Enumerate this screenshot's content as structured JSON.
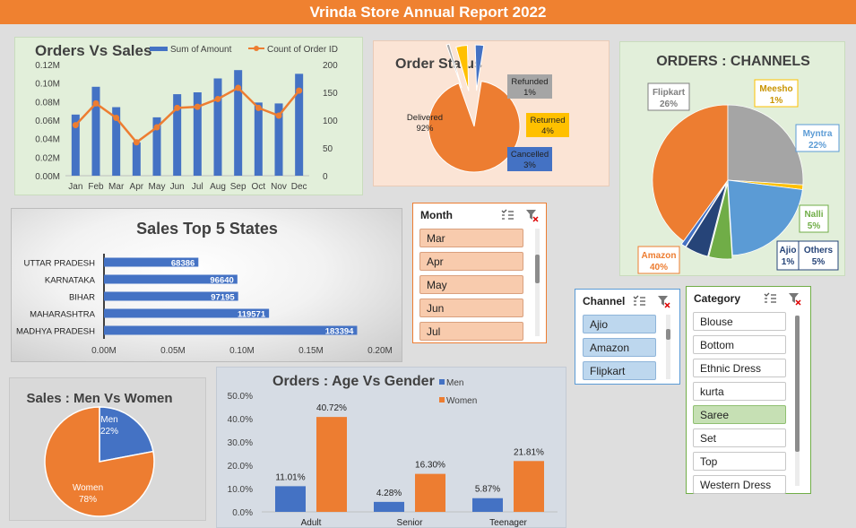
{
  "report_title": "Vrinda Store Annual Report 2022",
  "colors": {
    "blue": "#4472c4",
    "orange": "#ed7d31",
    "gray": "#a5a5a5",
    "yellow": "#ffc000",
    "green": "#70ad47",
    "lightblue": "#5b9bd5",
    "navy": "#264478"
  },
  "chart_data": [
    {
      "id": "orders_vs_sales",
      "type": "bar",
      "title": "Orders Vs Sales",
      "categories": [
        "Jan",
        "Feb",
        "Mar",
        "Apr",
        "May",
        "Jun",
        "Jul",
        "Aug",
        "Sep",
        "Oct",
        "Nov",
        "Dec"
      ],
      "series": [
        {
          "name": "Sum of Amount",
          "type": "bar",
          "axis": "left",
          "values": [
            0.066,
            0.096,
            0.074,
            0.036,
            0.063,
            0.088,
            0.09,
            0.105,
            0.114,
            0.079,
            0.078,
            0.11
          ]
        },
        {
          "name": "Count of Order ID",
          "type": "line",
          "axis": "right",
          "values": [
            91,
            130,
            104,
            60,
            87,
            122,
            124,
            138,
            158,
            122,
            108,
            153
          ]
        }
      ],
      "y_left_ticks": [
        "0.00M",
        "0.02M",
        "0.04M",
        "0.06M",
        "0.08M",
        "0.10M",
        "0.12M"
      ],
      "ylim_left": [
        0,
        0.12
      ],
      "y_right_ticks": [
        "0",
        "50",
        "100",
        "150",
        "200"
      ],
      "ylim_right": [
        0,
        200
      ],
      "legend": "top"
    },
    {
      "id": "order_status",
      "type": "pie",
      "title": "Order Status",
      "slices": [
        {
          "label": "Delivered",
          "pct": "92%",
          "value": 92
        },
        {
          "label": "Refunded",
          "pct": "1%",
          "value": 1
        },
        {
          "label": "Returned",
          "pct": "4%",
          "value": 4
        },
        {
          "label": "Cancelled",
          "pct": "3%",
          "value": 3
        }
      ]
    },
    {
      "id": "orders_channels",
      "type": "pie",
      "title": "ORDERS : CHANNELS",
      "slices": [
        {
          "label": "Amazon",
          "pct": "40%",
          "value": 40
        },
        {
          "label": "Flipkart",
          "pct": "26%",
          "value": 26
        },
        {
          "label": "Meesho",
          "pct": "1%",
          "value": 1
        },
        {
          "label": "Myntra",
          "pct": "22%",
          "value": 22
        },
        {
          "label": "Nalli",
          "pct": "5%",
          "value": 5
        },
        {
          "label": "Others",
          "pct": "5%",
          "value": 5
        },
        {
          "label": "Ajio",
          "pct": "1%",
          "value": 1
        }
      ]
    },
    {
      "id": "top5_states",
      "type": "bar",
      "orientation": "horizontal",
      "title": "Sales Top 5 States",
      "categories": [
        "UTTAR PRADESH",
        "KARNATAKA",
        "BIHAR",
        "MAHARASHTRA",
        "MADHYA PRADESH"
      ],
      "values": [
        68386,
        96640,
        97195,
        119571,
        183394
      ],
      "value_labels": [
        "68386",
        "96640",
        "97195",
        "119571",
        "183394"
      ],
      "x_ticks": [
        "0.00M",
        "0.05M",
        "0.10M",
        "0.15M",
        "0.20M"
      ],
      "xlim": [
        0,
        200000
      ]
    },
    {
      "id": "men_vs_women",
      "type": "pie",
      "title": "Sales : Men Vs Women",
      "slices": [
        {
          "label": "Men",
          "pct": "22%",
          "value": 22
        },
        {
          "label": "Women",
          "pct": "78%",
          "value": 78
        }
      ]
    },
    {
      "id": "age_vs_gender",
      "type": "bar",
      "title": "Orders : Age Vs Gender",
      "categories": [
        "Adult",
        "Senior",
        "Teenager"
      ],
      "series": [
        {
          "name": "Men",
          "values": [
            11.01,
            4.28,
            5.87
          ],
          "labels": [
            "11.01%",
            "4.28%",
            "5.87%"
          ]
        },
        {
          "name": "Women",
          "values": [
            40.72,
            16.3,
            21.81
          ],
          "labels": [
            "40.72%",
            "16.30%",
            "21.81%"
          ]
        }
      ],
      "y_ticks": [
        "0.0%",
        "10.0%",
        "20.0%",
        "30.0%",
        "40.0%",
        "50.0%"
      ],
      "ylim": [
        0,
        50
      ],
      "legend": "top-right"
    }
  ],
  "slicers": {
    "month": {
      "title": "Month",
      "items": [
        "Mar",
        "Apr",
        "May",
        "Jun",
        "Jul"
      ]
    },
    "channel": {
      "title": "Channel",
      "items": [
        "Ajio",
        "Amazon",
        "Flipkart"
      ]
    },
    "category": {
      "title": "Category",
      "items": [
        "Blouse",
        "Bottom",
        "Ethnic Dress",
        "kurta",
        "Saree",
        "Set",
        "Top",
        "Western Dress"
      ],
      "selected": "Saree"
    }
  }
}
